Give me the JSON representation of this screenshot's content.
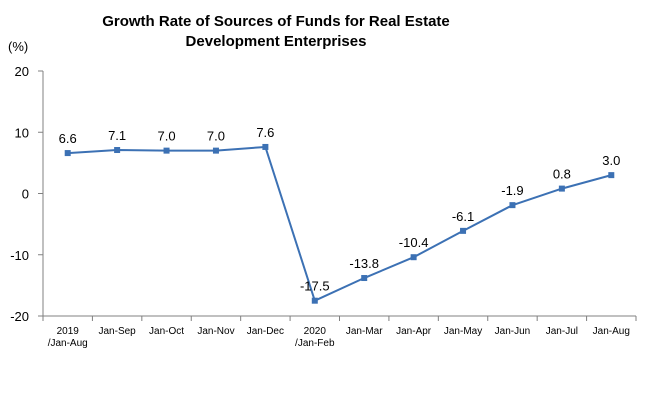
{
  "chart_data": {
    "type": "line",
    "title_lines": [
      "Growth Rate of Sources of Funds for Real Estate",
      "Development Enterprises"
    ],
    "unit_label": "(%)",
    "ylim": [
      -20,
      20
    ],
    "yticks": [
      20,
      10,
      0,
      -10,
      -20
    ],
    "categories": [
      [
        "2019",
        "/Jan-Aug"
      ],
      [
        "Jan-Sep"
      ],
      [
        "Jan-Oct"
      ],
      [
        "Jan-Nov"
      ],
      [
        "Jan-Dec"
      ],
      [
        "2020",
        "/Jan-Feb"
      ],
      [
        "Jan-Mar"
      ],
      [
        "Jan-Apr"
      ],
      [
        "Jan-May"
      ],
      [
        "Jan-Jun"
      ],
      [
        "Jan-Jul"
      ],
      [
        "Jan-Aug"
      ]
    ],
    "series": [
      {
        "values": [
          6.6,
          7.1,
          7.0,
          7.0,
          7.6,
          -17.5,
          -13.8,
          -10.4,
          -6.1,
          -1.9,
          0.8,
          3.0
        ],
        "labels": [
          "6.6",
          "7.1",
          "7.0",
          "7.0",
          "7.6",
          "-17.5",
          "-13.8",
          "-10.4",
          "-6.1",
          "-1.9",
          "0.8",
          "3.0"
        ]
      }
    ],
    "line_color": "#3c71b4",
    "grid": false
  }
}
